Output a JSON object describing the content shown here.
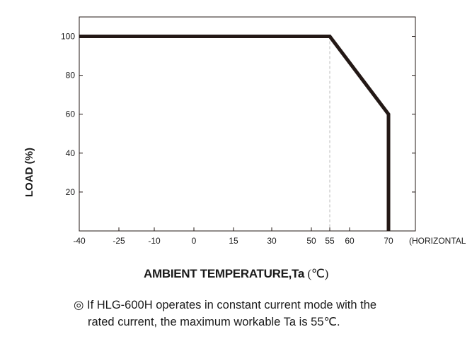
{
  "chart_data": {
    "type": "line",
    "title": "",
    "xlabel": "AMBIENT TEMPERATURE,Ta",
    "xlabel_unit": "(℃)",
    "ylabel": "LOAD (%)",
    "x_axis_note": "(HORIZONTAL",
    "x_ticks": [
      -40,
      -25,
      -10,
      0,
      15,
      30,
      50,
      55,
      60,
      70
    ],
    "y_ticks": [
      20,
      40,
      60,
      80,
      100
    ],
    "xlim": [
      -40,
      70
    ],
    "ylim": [
      0,
      110
    ],
    "grid": false,
    "reference_line": {
      "x": 55,
      "style": "dashed"
    },
    "series": [
      {
        "points": [
          [
            -40,
            100
          ],
          [
            55,
            100
          ],
          [
            70,
            60
          ],
          [
            70,
            0
          ]
        ]
      }
    ]
  },
  "note": {
    "symbol": "◎",
    "line1": "If HLG-600H operates in constant current mode with the",
    "line2": "rated current, the maximum workable Ta is 55℃."
  },
  "colors": {
    "curve": "#231815",
    "axis": "#231815",
    "reference": "#bbbbbb"
  }
}
